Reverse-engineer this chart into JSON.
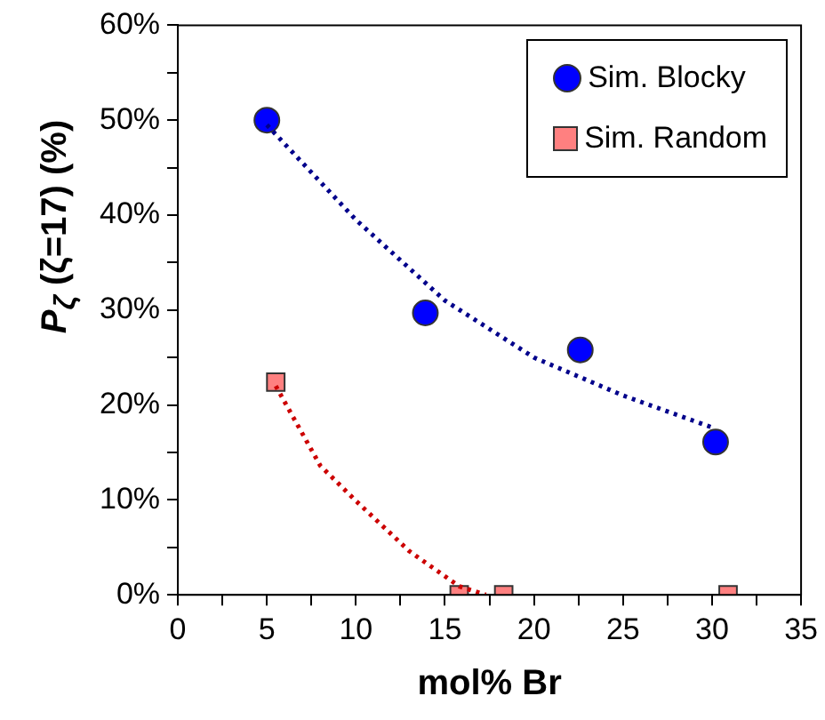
{
  "chart_data": {
    "type": "scatter",
    "xlabel": "mol% Br",
    "ylabel": "P$_{ζ}$ (ζ=17) (%)",
    "xlim": [
      0,
      35
    ],
    "xticks": [
      0,
      {
        "value": 2.5,
        "label": null
      },
      5,
      {
        "value": 7.5,
        "label": null
      },
      10,
      {
        "value": 12.5,
        "label": null
      },
      15,
      {
        "value": 17.5,
        "label": null
      },
      20,
      {
        "value": 22.5,
        "label": null
      },
      25,
      {
        "value": 27.5,
        "label": null
      },
      30,
      {
        "value": 32.5,
        "label": null
      },
      35
    ],
    "ylim": [
      0,
      60
    ],
    "yticks": [
      {
        "value": 0,
        "label": "0%"
      },
      {
        "value": 5,
        "label": null
      },
      {
        "value": 10,
        "label": "10%"
      },
      {
        "value": 15,
        "label": null
      },
      {
        "value": 20,
        "label": "20%"
      },
      {
        "value": 25,
        "label": null
      },
      {
        "value": 30,
        "label": "30%"
      },
      {
        "value": 35,
        "label": null
      },
      {
        "value": 40,
        "label": "40%"
      },
      {
        "value": 45,
        "label": null
      },
      {
        "value": 50,
        "label": "50%"
      },
      {
        "value": 55,
        "label": null
      },
      {
        "value": 60,
        "label": "60%"
      }
    ],
    "grid": false,
    "legend": "top right",
    "series": [
      {
        "type": "line",
        "color": "#00008b",
        "line_style": "dotted",
        "marker": "none",
        "x": [
          5,
          10,
          15,
          20,
          25,
          30.2
        ],
        "values": [
          49.5,
          39.5,
          31,
          25,
          21,
          17.5
        ]
      },
      {
        "type": "line",
        "color": "#cc0000",
        "line_style": "dotted",
        "marker": "none",
        "x": [
          5.5,
          8,
          10,
          13,
          15.8,
          17.3
        ],
        "values": [
          22,
          13.6,
          9.9,
          4.6,
          0.9,
          0
        ]
      },
      {
        "name": "Sim. Blocky",
        "color": "#0000ff",
        "marker": "circle",
        "x": [
          5,
          13.9,
          22.6,
          30.2
        ],
        "values": [
          50,
          29.7,
          25.8,
          16.1
        ]
      },
      {
        "name": "Sim. Random",
        "color": "#ff8080",
        "marker": "square",
        "x": [
          5.5,
          15.8,
          18.3,
          30.9
        ],
        "values": [
          22.4,
          0,
          0,
          0
        ]
      }
    ]
  }
}
